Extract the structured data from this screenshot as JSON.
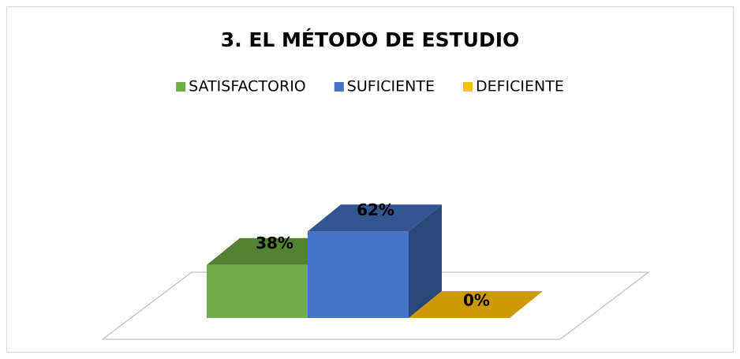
{
  "chart_data": {
    "type": "bar3d",
    "title": "3. EL MÉTODO DE ESTUDIO",
    "series": [
      {
        "name": "SATISFACTORIO",
        "color": "#70ad47",
        "values": [
          38
        ],
        "value_labels": [
          "38%"
        ]
      },
      {
        "name": "SUFICIENTE",
        "color": "#4472c4",
        "values": [
          62
        ],
        "value_labels": [
          "62%"
        ]
      },
      {
        "name": "DEFICIENTE",
        "color": "#ffc000",
        "values": [
          0
        ],
        "value_labels": [
          "0%"
        ]
      }
    ],
    "legend": "top"
  }
}
